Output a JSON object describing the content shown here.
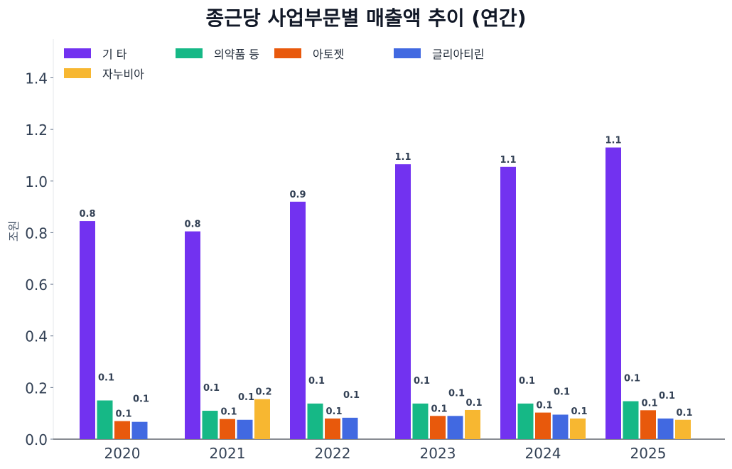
{
  "chart_data": {
    "type": "bar",
    "title": "종근당 사업부문별 매출액 추이 (연간)",
    "ylabel": "조원",
    "xlabel": "",
    "categories": [
      "2020",
      "2021",
      "2022",
      "2023",
      "2024",
      "2025"
    ],
    "ylim": [
      0,
      1.55
    ],
    "yticks": [
      "0.0",
      "0.2",
      "0.4",
      "0.6",
      "0.8",
      "1.0",
      "1.2",
      "1.4"
    ],
    "legend_position": "top-left",
    "grid": false,
    "series": [
      {
        "name": "기 타",
        "color": "#7232f0",
        "values": [
          0.845,
          0.805,
          0.92,
          1.065,
          1.055,
          1.13
        ],
        "labels": [
          "0.8",
          "0.8",
          "0.9",
          "1.1",
          "1.1",
          "1.1"
        ]
      },
      {
        "name": "의약품 등",
        "color": "#16b886",
        "values": [
          0.15,
          0.11,
          0.138,
          0.138,
          0.138,
          0.147
        ],
        "labels": [
          "0.1",
          "0.1",
          "0.1",
          "0.1",
          "0.1",
          "0.1"
        ]
      },
      {
        "name": "아토젯",
        "color": "#e8590c",
        "values": [
          0.07,
          0.078,
          0.08,
          0.09,
          0.103,
          0.112
        ],
        "labels": [
          "0.1",
          "0.1",
          "0.1",
          "0.1",
          "0.1",
          "0.1"
        ]
      },
      {
        "name": "글리아티린",
        "color": "#4169e1",
        "values": [
          0.067,
          0.075,
          0.083,
          0.09,
          0.095,
          0.08
        ],
        "labels": [
          "0.1",
          "0.1",
          "0.1",
          "0.1",
          "0.1",
          "0.1"
        ]
      },
      {
        "name": "자누비아",
        "color": "#f7b731",
        "values": [
          null,
          0.155,
          null,
          0.113,
          0.08,
          0.075
        ],
        "labels": [
          null,
          "0.2",
          null,
          "0.1",
          "0.1",
          "0.1"
        ]
      }
    ]
  }
}
